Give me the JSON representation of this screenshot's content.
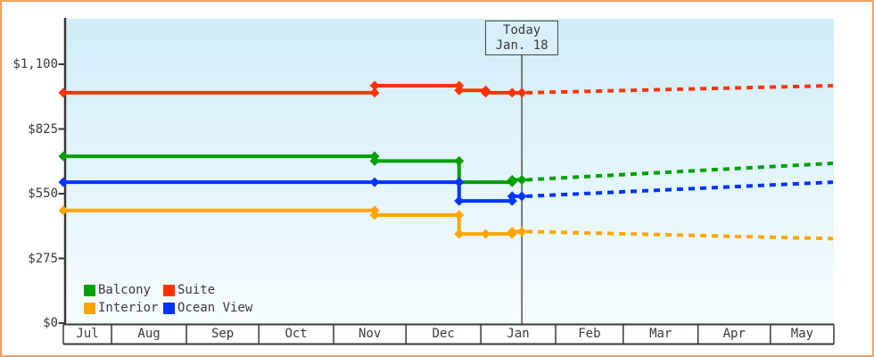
{
  "frame": {
    "border_color": "#ECA25F",
    "background": "#FFFFFF"
  },
  "today_marker": {
    "line1": "Today",
    "line2": "Jan. 18"
  },
  "legend": {
    "items": [
      {
        "label": "Balcony",
        "color": "#00A000"
      },
      {
        "label": "Suite",
        "color": "#FF3300"
      },
      {
        "label": "Interior",
        "color": "#FFA500"
      },
      {
        "label": "Ocean View",
        "color": "#0033FF"
      }
    ]
  },
  "chart_data": {
    "type": "line",
    "title": "",
    "grid": false,
    "legend_position": "bottom-left",
    "plot_background_top": "#D0EDF9",
    "plot_background_bottom": "#F6FCFF",
    "axis_color": "#383838",
    "y_axis": {
      "unit": "$",
      "tick_labels": [
        "$0",
        "$275",
        "$550",
        "$825",
        "$1,100"
      ],
      "tick_values": [
        0,
        275,
        550,
        825,
        1100
      ],
      "min": 0,
      "max": 1100
    },
    "x_axis": {
      "months": [
        "Jul",
        "Aug",
        "Sep",
        "Oct",
        "Nov",
        "Dec",
        "Jan",
        "Feb",
        "Mar",
        "Apr",
        "May"
      ],
      "start_date": "Jul 12",
      "end_date": "May 26"
    },
    "today": {
      "date": "Jan 18"
    },
    "series": [
      {
        "name": "Balcony",
        "color": "#00A000",
        "history": [
          {
            "date": "Jul 12",
            "price": 709
          },
          {
            "date": "Nov 18",
            "price": 689
          },
          {
            "date": "Dec 23",
            "price": 599
          },
          {
            "date": "Jan 14",
            "price": 609
          },
          {
            "date": "Jan 18",
            "price": 609
          }
        ],
        "forecast": {
          "end_date": "May 26",
          "end_price": 679
        }
      },
      {
        "name": "Suite",
        "color": "#FF3300",
        "history": [
          {
            "date": "Jul 12",
            "price": 979
          },
          {
            "date": "Nov 18",
            "price": 1009
          },
          {
            "date": "Dec 23",
            "price": 989
          },
          {
            "date": "Jan 3",
            "price": 979
          },
          {
            "date": "Jan 14",
            "price": 979
          },
          {
            "date": "Jan 18",
            "price": 979
          }
        ],
        "forecast": {
          "end_date": "May 26",
          "end_price": 1009
        }
      },
      {
        "name": "Interior",
        "color": "#FFA500",
        "history": [
          {
            "date": "Jul 12",
            "price": 479
          },
          {
            "date": "Nov 18",
            "price": 459
          },
          {
            "date": "Dec 23",
            "price": 379
          },
          {
            "date": "Jan 3",
            "price": 379
          },
          {
            "date": "Jan 14",
            "price": 389
          },
          {
            "date": "Jan 18",
            "price": 389
          }
        ],
        "forecast": {
          "end_date": "May 26",
          "end_price": 359
        }
      },
      {
        "name": "Ocean View",
        "color": "#0033FF",
        "history": [
          {
            "date": "Jul 12",
            "price": 599
          },
          {
            "date": "Nov 18",
            "price": 599
          },
          {
            "date": "Dec 23",
            "price": 519
          },
          {
            "date": "Jan 14",
            "price": 539
          },
          {
            "date": "Jan 18",
            "price": 539
          }
        ],
        "forecast": {
          "end_date": "May 26",
          "end_price": 599
        }
      }
    ]
  }
}
